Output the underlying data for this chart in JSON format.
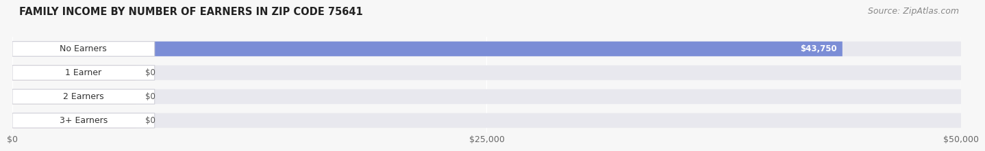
{
  "title": "FAMILY INCOME BY NUMBER OF EARNERS IN ZIP CODE 75641",
  "source": "Source: ZipAtlas.com",
  "categories": [
    "No Earners",
    "1 Earner",
    "2 Earners",
    "3+ Earners"
  ],
  "values": [
    43750,
    0,
    0,
    0
  ],
  "bar_colors": [
    "#7b8dd6",
    "#f0919e",
    "#f0c48a",
    "#f0919e"
  ],
  "value_labels": [
    "$43,750",
    "$0",
    "$0",
    "$0"
  ],
  "xlim": [
    0,
    50000
  ],
  "xticks": [
    0,
    25000,
    50000
  ],
  "xtick_labels": [
    "$0",
    "$25,000",
    "$50,000"
  ],
  "title_fontsize": 10.5,
  "source_fontsize": 9,
  "background_color": "#f7f7f7",
  "bar_bg_color": "#e8e8ee",
  "label_bg_color": "#ffffff",
  "label_fontsize": 9,
  "value_fontsize": 8.5,
  "zero_bar_width": 6500
}
